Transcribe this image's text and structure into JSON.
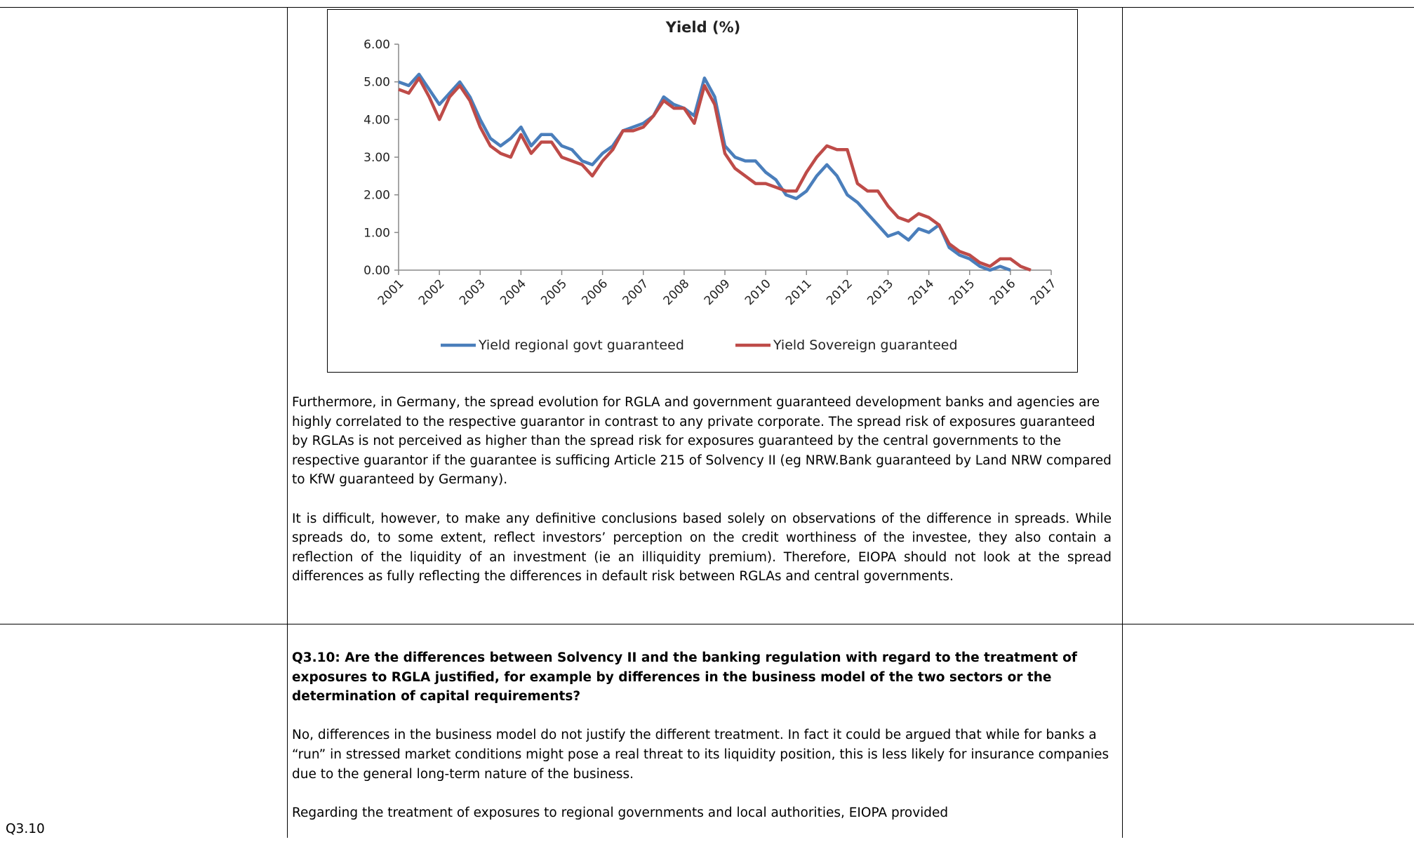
{
  "chart_data": {
    "type": "line",
    "title": "Yield (%)",
    "x": [
      2001,
      2001.25,
      2001.5,
      2001.75,
      2002,
      2002.25,
      2002.5,
      2002.75,
      2003,
      2003.25,
      2003.5,
      2003.75,
      2004,
      2004.25,
      2004.5,
      2004.75,
      2005,
      2005.25,
      2005.5,
      2005.75,
      2006,
      2006.25,
      2006.5,
      2006.75,
      2007,
      2007.25,
      2007.5,
      2007.75,
      2008,
      2008.25,
      2008.5,
      2008.75,
      2009,
      2009.25,
      2009.5,
      2009.75,
      2010,
      2010.25,
      2010.5,
      2010.75,
      2011,
      2011.25,
      2011.5,
      2011.75,
      2012,
      2012.25,
      2012.5,
      2012.75,
      2013,
      2013.25,
      2013.5,
      2013.75,
      2014,
      2014.25,
      2014.5,
      2014.75,
      2015,
      2015.25,
      2015.5,
      2015.75,
      2016,
      2016.25,
      2016.5
    ],
    "series": [
      {
        "name": "Yield regional govt guaranteed",
        "color": "#4a7ebb",
        "values": [
          5.0,
          4.9,
          5.2,
          4.8,
          4.4,
          4.7,
          5.0,
          4.6,
          4.0,
          3.5,
          3.3,
          3.5,
          3.8,
          3.3,
          3.6,
          3.6,
          3.3,
          3.2,
          2.9,
          2.8,
          3.1,
          3.3,
          3.7,
          3.8,
          3.9,
          4.1,
          4.6,
          4.4,
          4.3,
          4.1,
          5.1,
          4.6,
          3.3,
          3.0,
          2.9,
          2.9,
          2.6,
          2.4,
          2.0,
          1.9,
          2.1,
          2.5,
          2.8,
          2.5,
          2.0,
          1.8,
          1.5,
          1.2,
          0.9,
          1.0,
          0.8,
          1.1,
          1.0,
          1.2,
          0.6,
          0.4,
          0.3,
          0.1,
          0.0,
          0.1,
          0.0,
          null,
          null
        ]
      },
      {
        "name": "Yield Sovereign guaranteed",
        "color": "#be4b48",
        "values": [
          4.8,
          4.7,
          5.1,
          4.6,
          4.0,
          4.6,
          4.9,
          4.5,
          3.8,
          3.3,
          3.1,
          3.0,
          3.6,
          3.1,
          3.4,
          3.4,
          3.0,
          2.9,
          2.8,
          2.5,
          2.9,
          3.2,
          3.7,
          3.7,
          3.8,
          4.1,
          4.5,
          4.3,
          4.3,
          3.9,
          4.9,
          4.4,
          3.1,
          2.7,
          2.5,
          2.3,
          2.3,
          2.2,
          2.1,
          2.1,
          2.6,
          3.0,
          3.3,
          3.2,
          3.2,
          2.3,
          2.1,
          2.1,
          1.7,
          1.4,
          1.3,
          1.5,
          1.4,
          1.2,
          0.7,
          0.5,
          0.4,
          0.2,
          0.1,
          0.3,
          0.3,
          0.1,
          0.0
        ]
      }
    ],
    "xlim": [
      2001,
      2017
    ],
    "xticks": [
      2001,
      2002,
      2003,
      2004,
      2005,
      2006,
      2007,
      2008,
      2009,
      2010,
      2011,
      2012,
      2013,
      2014,
      2015,
      2016,
      2017
    ],
    "ylim": [
      0,
      6
    ],
    "yticks": [
      {
        "value": 0,
        "label": "0.00"
      },
      {
        "value": 1,
        "label": "1.00"
      },
      {
        "value": 2,
        "label": "2.00"
      },
      {
        "value": 3,
        "label": "3.00"
      },
      {
        "value": 4,
        "label": "4.00"
      },
      {
        "value": 5,
        "label": "5.00"
      },
      {
        "value": 6,
        "label": "6.00"
      }
    ],
    "grid": false,
    "legend": "bottom"
  },
  "table": {
    "rows": [
      {
        "paragraphs": [
          "Furthermore, in Germany, the spread evolution for RGLA and government guaranteed development banks and agencies are highly correlated to the respective guarantor in contrast to any private corporate. The spread risk of exposures guaranteed by RGLAs is not perceived as higher than the spread risk for exposures guaranteed by the central governments to the respective guarantor if the guarantee is sufficing Article 215 of Solvency II (eg NRW.Bank guaranteed by Land NRW compared to KfW guaranteed by Germany).",
          "It is difficult, however, to make any definitive conclusions based solely on observations of the difference in spreads. While spreads do, to some extent, reflect investors’ perception on the credit worthiness of the investee, they also contain a reflection of the liquidity of an investment (ie an illiquidity premium). Therefore, EIOPA should not look at the spread differences as fully reflecting the differences in default risk between RGLAs and central governments."
        ]
      },
      {
        "label": "Q3.10",
        "question": "Q3.10: Are the differences between Solvency II and the banking regulation with regard to the treatment of exposures to RGLA justified, for example by differences in the business model of the two sectors or the determination of capital requirements?",
        "paragraphs": [
          "No, differences in the business model do not justify the different treatment. In fact it could be argued that while for banks a “run” in stressed market conditions might pose a real threat to its liquidity position, this is less likely for insurance companies due to the general long-term nature of the business.",
          "Regarding the treatment of exposures to regional governments and local authorities, EIOPA provided"
        ]
      }
    ]
  }
}
